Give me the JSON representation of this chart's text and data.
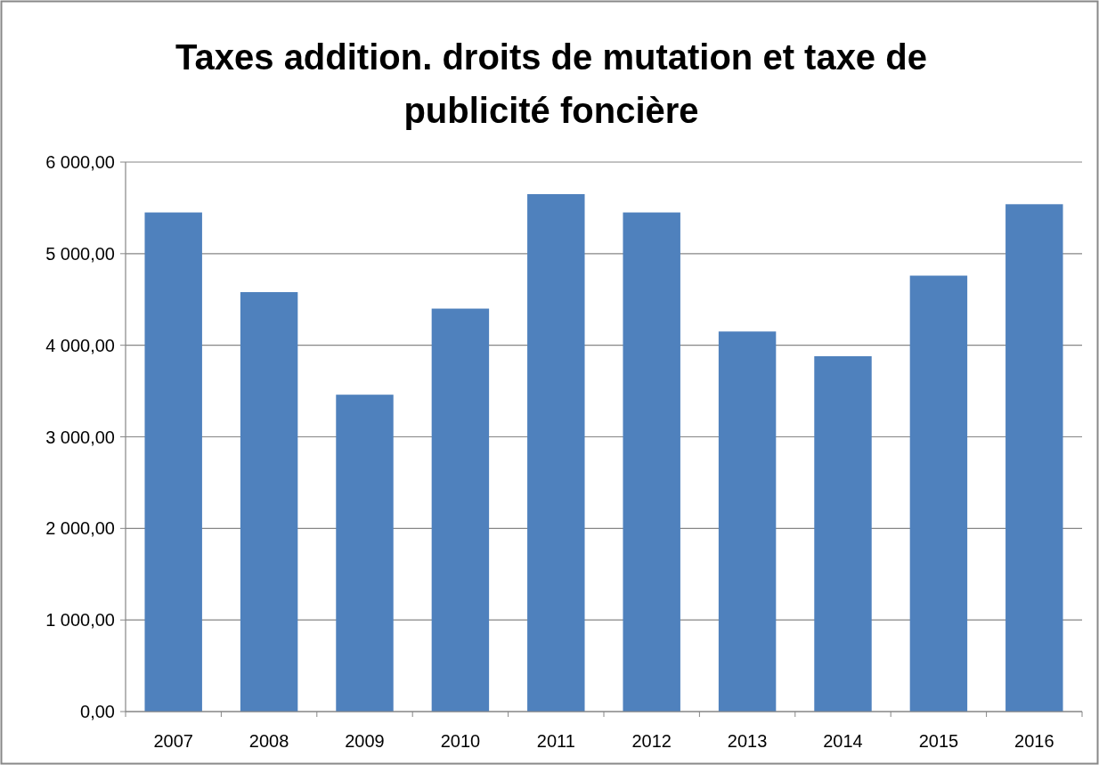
{
  "chart_data": {
    "type": "bar",
    "title": "Taxes addition. droits de mutation et taxe de publicité foncière",
    "categories": [
      "2007",
      "2008",
      "2009",
      "2010",
      "2011",
      "2012",
      "2013",
      "2014",
      "2015",
      "2016"
    ],
    "values": [
      5450,
      4580,
      3460,
      4400,
      5650,
      5450,
      4150,
      3880,
      4760,
      5540
    ],
    "color": "#4f81bd",
    "ylim": [
      0,
      6000
    ],
    "yticks": [
      {
        "value": 0,
        "label": "0,00"
      },
      {
        "value": 1000,
        "label": "1 000,00"
      },
      {
        "value": 2000,
        "label": "2 000,00"
      },
      {
        "value": 3000,
        "label": "3 000,00"
      },
      {
        "value": 4000,
        "label": "4 000,00"
      },
      {
        "value": 5000,
        "label": "5 000,00"
      },
      {
        "value": 6000,
        "label": "6 000,00"
      }
    ],
    "grid": "y"
  }
}
